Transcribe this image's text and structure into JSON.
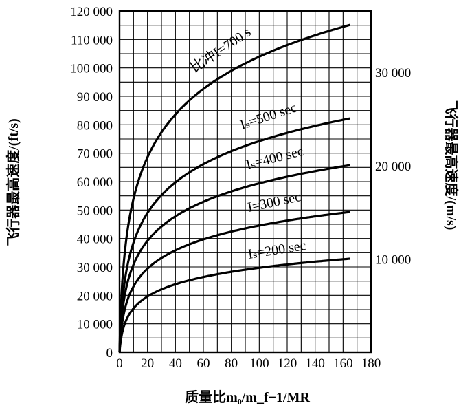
{
  "chart_data": {
    "type": "line",
    "xlabel": "质量比m₀/m_f−1/MR",
    "ylabel": "飞行器最高速度/(ft/s)",
    "ylabel_right": "飞行器最高速度/(m/s)",
    "xlim": [
      0,
      180
    ],
    "ylim": [
      0,
      120000
    ],
    "grid": true,
    "x_ticks": [
      0,
      20,
      40,
      60,
      80,
      100,
      120,
      140,
      160,
      180
    ],
    "x_tick_labels": [
      "0",
      "20",
      "40",
      "60",
      "80",
      "100",
      "120",
      "140",
      "160",
      "180"
    ],
    "y_ticks": [
      0,
      10000,
      20000,
      30000,
      40000,
      50000,
      60000,
      70000,
      80000,
      90000,
      100000,
      110000,
      120000
    ],
    "y_tick_labels": [
      "0",
      "10 000",
      "20 000",
      "30 000",
      "40 000",
      "50 000",
      "60 000",
      "70 000",
      "80 000",
      "90 000",
      "100 000",
      "110 000",
      "120 000"
    ],
    "y_right_ticks": [
      10000,
      20000,
      30000
    ],
    "y_right_tick_labels": [
      "10 000",
      "20 000",
      "30 000"
    ],
    "series": [
      {
        "name": "比冲I=700 s",
        "isp": 700,
        "x": [
          1,
          2,
          5,
          10,
          20,
          30,
          40,
          60,
          80,
          100,
          120,
          140,
          165
        ]
      },
      {
        "name": "Iₛ=500 sec",
        "isp": 500,
        "x": [
          1,
          2,
          5,
          10,
          20,
          30,
          40,
          60,
          80,
          100,
          120,
          140,
          165
        ]
      },
      {
        "name": "Iₛ=400 sec",
        "isp": 400,
        "x": [
          1,
          2,
          5,
          10,
          20,
          30,
          40,
          60,
          80,
          100,
          120,
          140,
          165
        ]
      },
      {
        "name": "I=300 sec",
        "isp": 300,
        "x": [
          1,
          2,
          5,
          10,
          20,
          30,
          40,
          60,
          80,
          100,
          120,
          140,
          165
        ]
      },
      {
        "name": "Iₛ=200 sec",
        "isp": 200,
        "x": [
          1,
          2,
          5,
          10,
          20,
          30,
          40,
          60,
          80,
          100,
          120,
          140,
          165
        ]
      }
    ]
  }
}
